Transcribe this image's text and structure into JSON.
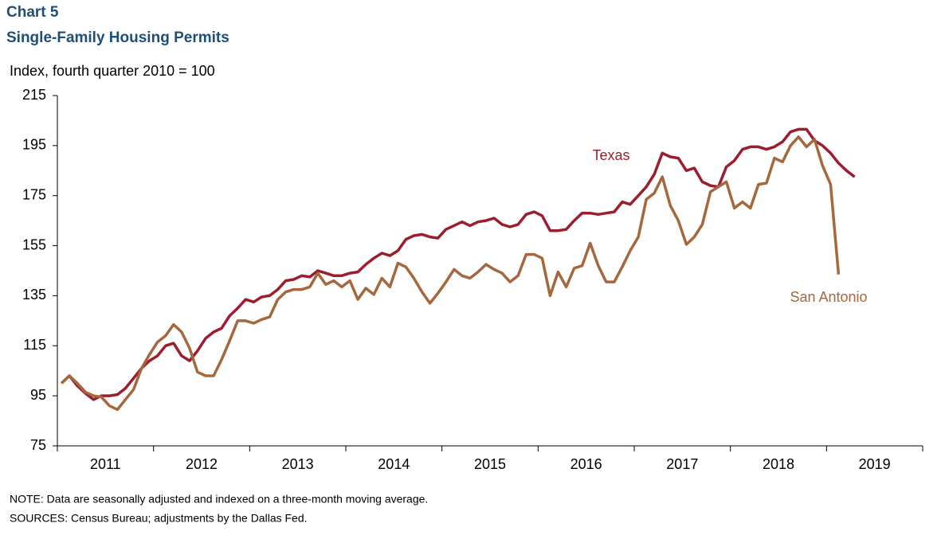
{
  "chart_data": {
    "type": "line",
    "title": "Chart 5",
    "subtitle": "Single-Family Housing Permits",
    "y_label": "Index, fourth quarter 2010 = 100",
    "notes": [
      "NOTE:  Data are seasonally adjusted and indexed on a three-month moving average.",
      "SOURCES:  Census Bureau; adjustments  by the Dallas Fed."
    ],
    "x": [
      2011.042,
      2011.125,
      2011.208,
      2011.292,
      2011.375,
      2011.458,
      2011.542,
      2011.625,
      2011.708,
      2011.792,
      2011.875,
      2011.958,
      2012.042,
      2012.125,
      2012.208,
      2012.292,
      2012.375,
      2012.458,
      2012.542,
      2012.625,
      2012.708,
      2012.792,
      2012.875,
      2012.958,
      2013.042,
      2013.125,
      2013.208,
      2013.292,
      2013.375,
      2013.458,
      2013.542,
      2013.625,
      2013.708,
      2013.792,
      2013.875,
      2013.958,
      2014.042,
      2014.125,
      2014.208,
      2014.292,
      2014.375,
      2014.458,
      2014.542,
      2014.625,
      2014.708,
      2014.792,
      2014.875,
      2014.958,
      2015.042,
      2015.125,
      2015.208,
      2015.292,
      2015.375,
      2015.458,
      2015.542,
      2015.625,
      2015.708,
      2015.792,
      2015.875,
      2015.958,
      2016.042,
      2016.125,
      2016.208,
      2016.292,
      2016.375,
      2016.458,
      2016.542,
      2016.625,
      2016.708,
      2016.792,
      2016.875,
      2016.958,
      2017.042,
      2017.125,
      2017.208,
      2017.292,
      2017.375,
      2017.458,
      2017.542,
      2017.625,
      2017.708,
      2017.792,
      2017.875,
      2017.958,
      2018.042,
      2018.125,
      2018.208,
      2018.292,
      2018.375,
      2018.458,
      2018.542,
      2018.625,
      2018.708,
      2018.792,
      2018.875,
      2018.958,
      2019.042,
      2019.125,
      2019.208,
      2019.292
    ],
    "series": [
      {
        "name": "Texas",
        "color": "#9c1e2e",
        "values": [
          100,
          103,
          99,
          96,
          93.5,
          95,
          95,
          95.5,
          98,
          102,
          106,
          109,
          111,
          115,
          116,
          111,
          109,
          113,
          118,
          120.5,
          122,
          127,
          130,
          133.5,
          132.5,
          134.5,
          135,
          137.5,
          141,
          141.5,
          143,
          142.5,
          145,
          144,
          143,
          143,
          144,
          144.5,
          147.5,
          150,
          152,
          151,
          153,
          157.5,
          159,
          159.5,
          158.5,
          158,
          161.5,
          163,
          164.5,
          163,
          164.5,
          165,
          166,
          163.5,
          162.5,
          163.5,
          167.5,
          168.5,
          167,
          161,
          161,
          161.5,
          165,
          168,
          168,
          167.5,
          168,
          168.5,
          172.5,
          171.5,
          175,
          178.5,
          183.5,
          192,
          190.5,
          190,
          185,
          186,
          180.5,
          179,
          178.5,
          186.5,
          189,
          193.5,
          194.5,
          194.5,
          193.5,
          194.5,
          196.5,
          200.5,
          201.5,
          201.5,
          197,
          195,
          192,
          188,
          185,
          182.5
        ]
      },
      {
        "name": "San Antonio",
        "color": "#a5683e",
        "values": [
          100,
          103,
          100,
          96.5,
          95,
          94.5,
          91,
          89.5,
          93.5,
          97.5,
          106,
          111.5,
          116.5,
          119,
          123.5,
          120.5,
          114,
          104.5,
          103,
          103,
          109.5,
          117,
          125,
          125,
          124,
          125.5,
          126.5,
          133.5,
          136.5,
          137.5,
          137.5,
          138.5,
          144,
          139.5,
          141,
          138.5,
          141,
          133.5,
          138,
          135.5,
          142,
          138.5,
          148,
          146.5,
          142,
          136.5,
          132,
          136,
          140.5,
          145.5,
          143,
          142,
          144.5,
          147.5,
          145.5,
          144,
          140.5,
          143,
          151.5,
          151.5,
          150,
          135,
          144.5,
          138.5,
          146,
          147,
          156,
          147,
          140.5,
          140.5,
          146.5,
          153,
          158.5,
          173.5,
          176,
          182.5,
          171,
          165,
          155.5,
          158.5,
          163.5,
          176.5,
          178.5,
          180.5,
          170,
          172.5,
          170,
          179.5,
          180,
          190,
          188.5,
          195,
          198.5,
          194.5,
          197.5,
          187,
          179.5,
          143.5,
          null,
          null
        ]
      }
    ],
    "xlim": [
      2011,
      2020
    ],
    "xticks": [
      {
        "value": 2011.5,
        "label": "2011"
      },
      {
        "value": 2012.5,
        "label": "2012"
      },
      {
        "value": 2013.5,
        "label": "2013"
      },
      {
        "value": 2014.5,
        "label": "2014"
      },
      {
        "value": 2015.5,
        "label": "2015"
      },
      {
        "value": 2016.5,
        "label": "2016"
      },
      {
        "value": 2017.5,
        "label": "2017"
      },
      {
        "value": 2018.5,
        "label": "2018"
      },
      {
        "value": 2019.5,
        "label": "2019"
      }
    ],
    "ylim": [
      75,
      215
    ],
    "yticks": [
      75,
      95,
      115,
      135,
      155,
      175,
      195,
      215
    ],
    "grid": false
  }
}
